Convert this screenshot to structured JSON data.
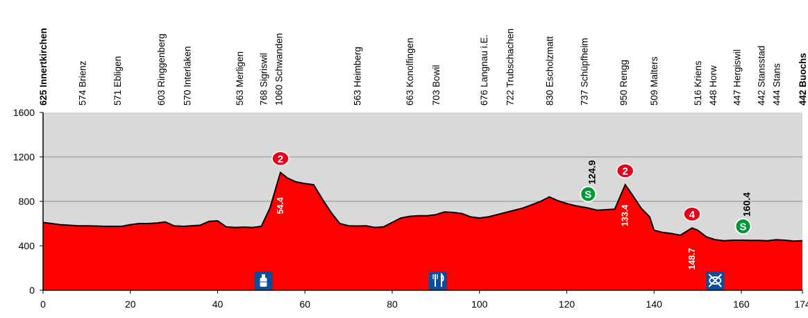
{
  "chart_data": {
    "type": "area",
    "x_ticks": [
      0,
      20,
      40,
      60,
      80,
      100,
      120,
      140,
      160,
      174
    ],
    "y_ticks": [
      0,
      400,
      800,
      1200,
      1600
    ],
    "xlim": [
      0,
      174
    ],
    "ylim": [
      0,
      1600
    ],
    "grid": "horizontal",
    "colors": {
      "fill": "#ff0000",
      "background": "#d9d9d9",
      "line": "#000000",
      "sprint": "#009933",
      "climb": "#e3001b",
      "service": "#0a4f9c"
    },
    "series": [
      {
        "x": [
          0,
          2,
          4,
          6,
          8,
          10,
          12,
          14,
          16,
          18,
          20,
          22,
          24,
          26,
          28,
          30,
          32,
          34,
          36,
          38,
          40,
          42,
          44,
          46,
          48,
          50,
          52,
          54.4,
          56,
          58,
          60,
          62,
          64,
          66,
          68,
          70,
          72,
          74,
          76,
          78,
          80,
          82,
          84,
          86,
          88,
          90,
          92,
          94,
          96,
          98,
          100,
          102,
          104,
          106,
          108,
          110,
          112,
          114,
          116,
          118,
          120,
          122,
          124.9,
          127,
          129,
          131,
          133.4,
          135,
          137,
          139,
          140,
          142,
          144,
          146,
          148.7,
          150,
          152,
          154,
          156,
          158,
          160.4,
          162,
          164,
          166,
          168,
          170,
          172,
          174
        ],
        "y": [
          610,
          600,
          590,
          585,
          580,
          580,
          578,
          575,
          575,
          575,
          590,
          600,
          600,
          605,
          615,
          580,
          575,
          580,
          585,
          620,
          625,
          570,
          565,
          568,
          565,
          575,
          740,
          1060,
          1010,
          975,
          960,
          950,
          820,
          700,
          600,
          580,
          578,
          580,
          565,
          570,
          610,
          650,
          665,
          670,
          670,
          680,
          705,
          700,
          690,
          660,
          650,
          660,
          680,
          700,
          720,
          740,
          770,
          800,
          840,
          805,
          780,
          760,
          740,
          720,
          725,
          730,
          950,
          860,
          740,
          660,
          540,
          520,
          510,
          495,
          560,
          540,
          480,
          455,
          445,
          450,
          450,
          448,
          449,
          445,
          455,
          450,
          442,
          445
        ]
      }
    ],
    "locations": [
      {
        "km": 0,
        "label": "625 Innertkirchen",
        "bold": true
      },
      {
        "km": 9,
        "label": "574 Brienz"
      },
      {
        "km": 17,
        "label": "571 Ebligen"
      },
      {
        "km": 27,
        "label": "603 Ringgenberg"
      },
      {
        "km": 33,
        "label": "570 Interlaken"
      },
      {
        "km": 45,
        "label": "563 Merligen"
      },
      {
        "km": 50.5,
        "label": "768 Sigriswil"
      },
      {
        "km": 54,
        "label": "1060 Schwanden"
      },
      {
        "km": 72,
        "label": "563 Heimberg"
      },
      {
        "km": 84,
        "label": "663 Konolfingen"
      },
      {
        "km": 90,
        "label": "703 Bowil"
      },
      {
        "km": 101,
        "label": "676 Langnau i.E."
      },
      {
        "km": 107,
        "label": "722 Trubschachen"
      },
      {
        "km": 116,
        "label": "830 Escholzmatt"
      },
      {
        "km": 124,
        "label": "737 Schüpfheim"
      },
      {
        "km": 133,
        "label": "950 Rengg"
      },
      {
        "km": 140,
        "label": "509 Malters"
      },
      {
        "km": 150,
        "label": "516 Kriens"
      },
      {
        "km": 153.5,
        "label": "448 Horw"
      },
      {
        "km": 159,
        "label": "447 Hergiswil"
      },
      {
        "km": 164.5,
        "label": "442 Stansstad"
      },
      {
        "km": 168,
        "label": "444 Stans"
      },
      {
        "km": 174,
        "label": "442 Buochs",
        "bold": true
      }
    ],
    "climbs": [
      {
        "km": 54.4,
        "category": "2",
        "km_label": "54.4"
      },
      {
        "km": 133.4,
        "category": "2",
        "km_label": "133.4"
      },
      {
        "km": 148.7,
        "category": "4",
        "km_label": "148.7"
      }
    ],
    "sprints": [
      {
        "km": 124.9,
        "symbol": "S",
        "km_label": "124.9"
      },
      {
        "km": 160.4,
        "symbol": "S",
        "km_label": "160.4"
      }
    ],
    "services": [
      {
        "km": 50.5,
        "icon": "water-bottle-icon"
      },
      {
        "km": 90.5,
        "icon": "feed-zone-icon"
      },
      {
        "km": 154,
        "icon": "no-feed-zone-icon"
      }
    ]
  }
}
